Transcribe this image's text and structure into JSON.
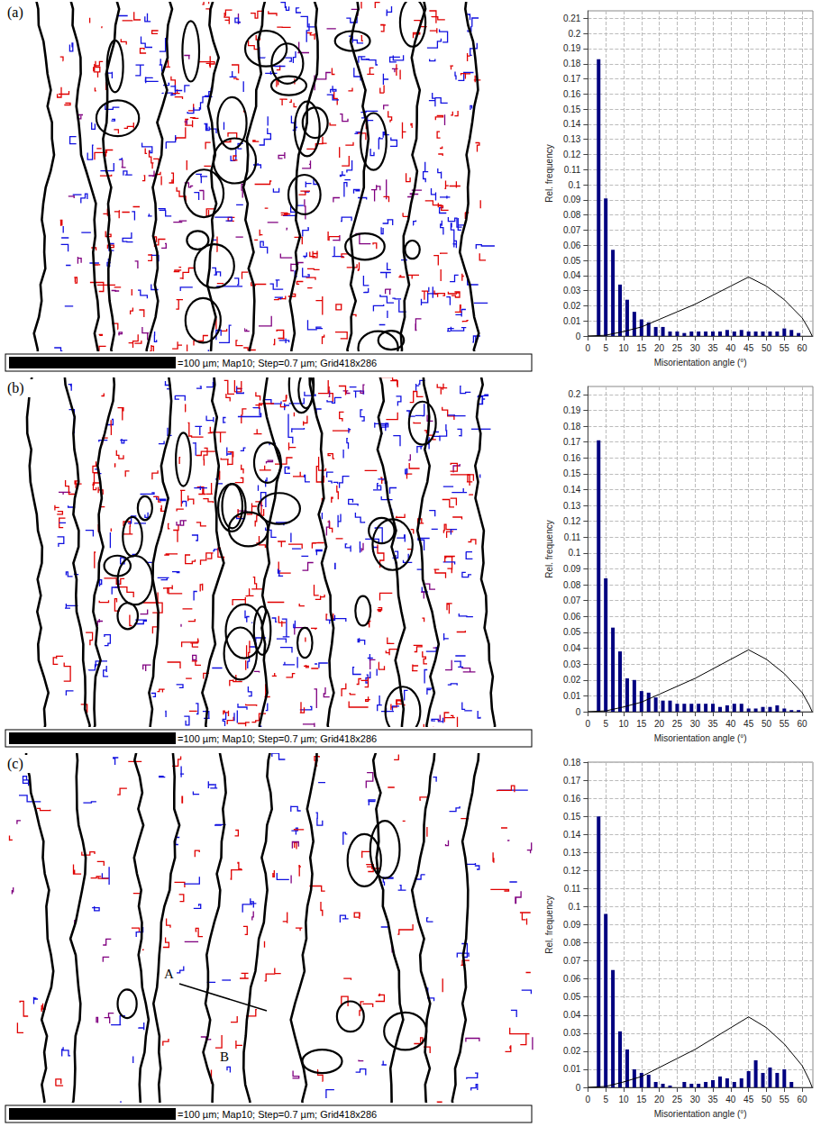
{
  "maps": [
    {
      "label": "(a)",
      "scale_caption": "=100 µm; Map10; Step=0.7 µm; Grid418x286",
      "annotations": []
    },
    {
      "label": "(b)",
      "scale_caption": "=100 µm; Map10; Step=0.7 µm; Grid418x286",
      "annotations": []
    },
    {
      "label": "(c)",
      "scale_caption": "=100 µm; Map10; Step=0.7 µm; Grid418x286",
      "annotations": [
        "A",
        "B"
      ]
    }
  ],
  "chart_data": [
    {
      "type": "bar",
      "xlabel": "Misorientation angle (°)",
      "ylabel": "Rel. frequency",
      "series": [
        {
          "type": "bar",
          "color": "#000080",
          "x": [
            3,
            5,
            7,
            9,
            11,
            13,
            15,
            17,
            19,
            21,
            23,
            25,
            27,
            29,
            31,
            33,
            35,
            37,
            39,
            41,
            43,
            45,
            47,
            49,
            51,
            53,
            55,
            57,
            59
          ],
          "values": [
            0.183,
            0.091,
            0.057,
            0.034,
            0.024,
            0.016,
            0.011,
            0.009,
            0.006,
            0.006,
            0.003,
            0.003,
            0.002,
            0.003,
            0.003,
            0.003,
            0.003,
            0.003,
            0.004,
            0.003,
            0.004,
            0.003,
            0.003,
            0.003,
            0.003,
            0.003,
            0.005,
            0.004,
            0.002
          ]
        },
        {
          "type": "line",
          "color": "#000000",
          "x": [
            0,
            5,
            10,
            15,
            20,
            25,
            30,
            35,
            40,
            45,
            50,
            55,
            60,
            62,
            62.8
          ],
          "values": [
            0,
            0.0005,
            0.003,
            0.006,
            0.011,
            0.016,
            0.021,
            0.027,
            0.033,
            0.039,
            0.033,
            0.024,
            0.012,
            0.004,
            0
          ]
        }
      ],
      "xlim": [
        0,
        63
      ],
      "xticks": [
        0,
        5,
        10,
        15,
        20,
        25,
        30,
        35,
        40,
        45,
        50,
        55,
        60
      ],
      "ylim": [
        0,
        0.215
      ],
      "yticks": [
        0,
        0.01,
        0.02,
        0.03,
        0.04,
        0.05,
        0.06,
        0.07,
        0.08,
        0.09,
        0.1,
        0.11,
        0.12,
        0.13,
        0.14,
        0.15,
        0.16,
        0.17,
        0.18,
        0.19,
        0.2,
        0.21
      ],
      "grid": true
    },
    {
      "type": "bar",
      "xlabel": "Misorientation angle (°)",
      "ylabel": "Rel. frequency",
      "series": [
        {
          "type": "bar",
          "color": "#000080",
          "x": [
            3,
            5,
            7,
            9,
            11,
            13,
            15,
            17,
            19,
            21,
            23,
            25,
            27,
            29,
            31,
            33,
            35,
            37,
            39,
            41,
            43,
            45,
            47,
            49,
            51,
            53,
            55,
            57,
            59
          ],
          "values": [
            0.171,
            0.084,
            0.053,
            0.038,
            0.021,
            0.02,
            0.013,
            0.012,
            0.009,
            0.007,
            0.007,
            0.005,
            0.005,
            0.005,
            0.005,
            0.005,
            0.005,
            0.003,
            0.004,
            0.005,
            0.005,
            0.002,
            0.002,
            0.003,
            0.003,
            0.004,
            0.002,
            0.001,
            0.001
          ]
        },
        {
          "type": "line",
          "color": "#000000",
          "x": [
            0,
            5,
            10,
            15,
            20,
            25,
            30,
            35,
            40,
            45,
            50,
            55,
            60,
            62,
            62.8
          ],
          "values": [
            0,
            0.0005,
            0.003,
            0.006,
            0.011,
            0.016,
            0.021,
            0.027,
            0.033,
            0.039,
            0.033,
            0.024,
            0.012,
            0.004,
            0
          ]
        }
      ],
      "xlim": [
        0,
        63
      ],
      "xticks": [
        0,
        5,
        10,
        15,
        20,
        25,
        30,
        35,
        40,
        45,
        50,
        55,
        60
      ],
      "ylim": [
        0,
        0.205
      ],
      "yticks": [
        0,
        0.01,
        0.02,
        0.03,
        0.04,
        0.05,
        0.06,
        0.07,
        0.08,
        0.09,
        0.1,
        0.11,
        0.12,
        0.13,
        0.14,
        0.15,
        0.16,
        0.17,
        0.18,
        0.19,
        0.2
      ],
      "grid": true
    },
    {
      "type": "bar",
      "xlabel": "Misorientation angle (°)",
      "ylabel": "Rel. frequency",
      "series": [
        {
          "type": "bar",
          "color": "#000080",
          "x": [
            3,
            5,
            7,
            9,
            11,
            13,
            15,
            17,
            19,
            21,
            23,
            25,
            27,
            29,
            31,
            33,
            35,
            37,
            39,
            41,
            43,
            45,
            47,
            49,
            51,
            53,
            55,
            57,
            59
          ],
          "values": [
            0.15,
            0.096,
            0.065,
            0.031,
            0.021,
            0.01,
            0.008,
            0.007,
            0.003,
            0.002,
            0.001,
            0.0,
            0.003,
            0.002,
            0.002,
            0.003,
            0.004,
            0.006,
            0.005,
            0.003,
            0.005,
            0.009,
            0.015,
            0.008,
            0.011,
            0.008,
            0.01,
            0.003,
            0.0
          ]
        },
        {
          "type": "line",
          "color": "#000000",
          "x": [
            0,
            5,
            10,
            15,
            20,
            25,
            30,
            35,
            40,
            45,
            50,
            55,
            60,
            62,
            62.8
          ],
          "values": [
            0,
            0.0005,
            0.003,
            0.006,
            0.011,
            0.016,
            0.021,
            0.027,
            0.033,
            0.039,
            0.033,
            0.024,
            0.012,
            0.004,
            0
          ]
        }
      ],
      "xlim": [
        0,
        63
      ],
      "xticks": [
        0,
        5,
        10,
        15,
        20,
        25,
        30,
        35,
        40,
        45,
        50,
        55,
        60
      ],
      "ylim": [
        0,
        0.18
      ],
      "yticks": [
        0,
        0.01,
        0.02,
        0.03,
        0.04,
        0.05,
        0.06,
        0.07,
        0.08,
        0.09,
        0.1,
        0.11,
        0.12,
        0.13,
        0.14,
        0.15,
        0.16,
        0.17,
        0.18
      ],
      "grid": true
    }
  ]
}
